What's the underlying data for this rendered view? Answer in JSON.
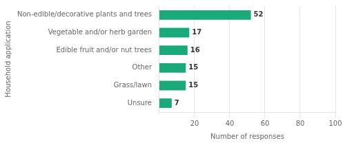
{
  "chart_data": {
    "type": "bar",
    "orientation": "horizontal",
    "categories": [
      "Unsure",
      "Grass/lawn",
      "Other",
      "Edible fruit and/or nut trees",
      "Vegetable and/or herb garden",
      "Non-edible/decorative plants and trees"
    ],
    "values": [
      7,
      15,
      15,
      16,
      17,
      52
    ],
    "color": "#1aaa7a",
    "xlabel": "Number of responses",
    "ylabel": "Household application",
    "xlim": [
      0,
      100
    ],
    "xticks": [
      20,
      40,
      60,
      80,
      100
    ],
    "grid": true,
    "data_labels": true
  }
}
